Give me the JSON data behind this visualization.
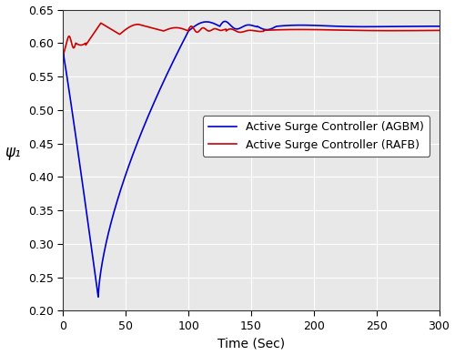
{
  "title": "",
  "xlabel": "Time (Sec)",
  "ylabel": "ψ₁",
  "xlim": [
    0,
    300
  ],
  "ylim": [
    0.2,
    0.65
  ],
  "yticks": [
    0.2,
    0.25,
    0.3,
    0.35,
    0.4,
    0.45,
    0.5,
    0.55,
    0.6,
    0.65
  ],
  "xticks": [
    0,
    50,
    100,
    150,
    200,
    250,
    300
  ],
  "legend": [
    "Active Surge Controller (AGBM)",
    "Active Surge Controller (RAFB)"
  ],
  "color_agbm": "#0000CD",
  "color_rafb": "#CC0000",
  "ax_facecolor": "#e8e8e8",
  "fig_facecolor": "#ffffff",
  "grid_color": "#ffffff",
  "figsize": [
    5.0,
    3.9
  ],
  "dpi": 100
}
